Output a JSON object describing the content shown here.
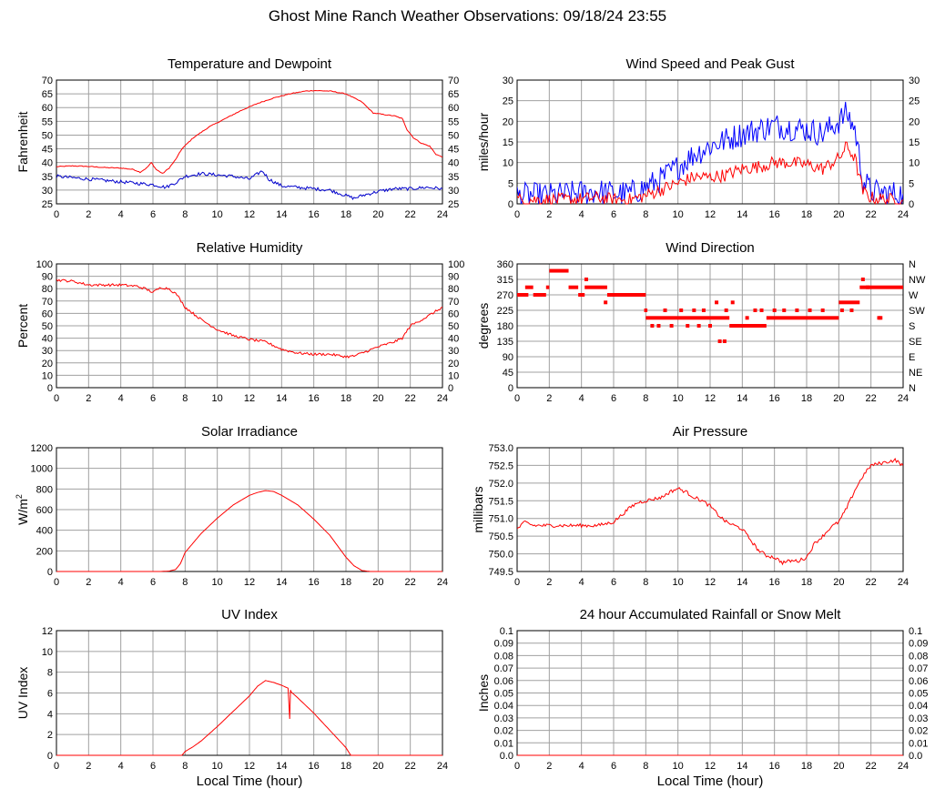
{
  "page": {
    "title": "Ghost Mine Ranch Weather Observations: 09/18/24 23:55"
  },
  "chart_data": [
    {
      "id": "temp",
      "type": "line",
      "title": "Temperature and Dewpoint",
      "xlabel": "",
      "ylabel": "Fahrenheit",
      "xlim": [
        0,
        24
      ],
      "ylim": [
        25,
        70
      ],
      "x_ticks": [
        0,
        2,
        4,
        6,
        8,
        10,
        12,
        14,
        16,
        18,
        20,
        22,
        24
      ],
      "y_ticks": [
        "25",
        "30",
        "35",
        "40",
        "45",
        "50",
        "55",
        "60",
        "65",
        "70"
      ],
      "right_ticks": [
        "25",
        "30",
        "35",
        "40",
        "45",
        "50",
        "55",
        "60",
        "65",
        "70"
      ],
      "grid": true,
      "series": [
        {
          "color": "#ff0000",
          "noise": 0.15,
          "x": [
            0,
            1,
            2,
            3,
            4,
            4.8,
            5.2,
            5.6,
            5.9,
            6.2,
            6.6,
            7,
            7.4,
            7.8,
            8.5,
            9.5,
            10.5,
            11.5,
            12.5,
            13.5,
            14.5,
            15.5,
            16,
            17,
            18,
            19,
            19.7,
            20.3,
            21,
            21.5,
            21.8,
            22.2,
            22.7,
            23.2,
            23.6,
            24
          ],
          "y": [
            38.5,
            38.8,
            38.6,
            38.2,
            38,
            37.5,
            36.5,
            38,
            40,
            37.5,
            36,
            38,
            41,
            45,
            49,
            53,
            56,
            59,
            61.5,
            63.5,
            65,
            66,
            66.2,
            66,
            65,
            62,
            58,
            57.5,
            57,
            56,
            52,
            49,
            47,
            46,
            43,
            42
          ]
        },
        {
          "color": "#0000cc",
          "noise": 0.6,
          "x": [
            0,
            1,
            2,
            3,
            4,
            5,
            6,
            6.8,
            7.5,
            8,
            9,
            10,
            11,
            12,
            12.8,
            13.2,
            14,
            15,
            16,
            17,
            18,
            18.5,
            19,
            20,
            21,
            22,
            23,
            24
          ],
          "y": [
            35,
            34.5,
            34,
            33.5,
            33,
            32.5,
            32,
            31,
            33,
            35,
            36,
            35.5,
            35,
            34,
            37,
            34,
            31.5,
            31,
            30.5,
            30,
            28,
            27,
            28,
            29.5,
            30.5,
            30.5,
            31,
            30.5
          ]
        }
      ]
    },
    {
      "id": "wind",
      "type": "line",
      "title": "Wind Speed and Peak Gust",
      "xlabel": "",
      "ylabel": "miles/hour",
      "xlim": [
        0,
        24
      ],
      "ylim": [
        0,
        30
      ],
      "x_ticks": [
        0,
        2,
        4,
        6,
        8,
        10,
        12,
        14,
        16,
        18,
        20,
        22,
        24
      ],
      "y_ticks": [
        "0",
        "5",
        "10",
        "15",
        "20",
        "25",
        "30"
      ],
      "right_ticks": [
        "0",
        "5",
        "10",
        "15",
        "20",
        "25",
        "30"
      ],
      "grid": true,
      "series": [
        {
          "color": "#0000ff",
          "noise": 3.2,
          "x": [
            0,
            2,
            3.5,
            5,
            6,
            7,
            8,
            9,
            10,
            11,
            12,
            13,
            14,
            15,
            16,
            17,
            18,
            19,
            20,
            20.5,
            21,
            21.5,
            22,
            23,
            24
          ],
          "y": [
            2,
            2,
            2.5,
            3,
            2.5,
            2.5,
            4,
            6,
            9,
            12,
            14,
            15.5,
            17,
            18,
            19,
            18.5,
            18,
            17,
            20,
            22,
            18,
            6,
            3,
            2.5,
            2.5
          ]
        },
        {
          "color": "#ff0000",
          "noise": 1.6,
          "x": [
            0,
            2,
            3.5,
            5,
            6,
            7,
            8,
            9,
            10,
            11,
            12,
            13,
            14,
            15,
            16,
            17,
            18,
            19,
            20,
            20.5,
            21,
            21.5,
            22,
            23,
            24
          ],
          "y": [
            1,
            1,
            1,
            1.5,
            1,
            1,
            2,
            3.5,
            5,
            6.5,
            6.5,
            7,
            8.5,
            9,
            10,
            10,
            9.5,
            8.5,
            11,
            14,
            11,
            3,
            1.5,
            1,
            1
          ]
        }
      ]
    },
    {
      "id": "rh",
      "type": "line",
      "title": "Relative Humidity",
      "xlabel": "",
      "ylabel": "Percent",
      "xlim": [
        0,
        24
      ],
      "ylim": [
        0,
        100
      ],
      "x_ticks": [
        0,
        2,
        4,
        6,
        8,
        10,
        12,
        14,
        16,
        18,
        20,
        22,
        24
      ],
      "y_ticks": [
        "0",
        "10",
        "20",
        "30",
        "40",
        "50",
        "60",
        "70",
        "80",
        "90",
        "100"
      ],
      "right_ticks": [
        "0",
        "10",
        "20",
        "30",
        "40",
        "50",
        "60",
        "70",
        "80",
        "90",
        "100"
      ],
      "grid": true,
      "series": [
        {
          "color": "#ff0000",
          "noise": 1.0,
          "x": [
            0,
            1,
            2,
            3,
            4,
            5,
            5.5,
            6,
            6.5,
            7,
            7.5,
            8,
            9,
            10,
            11,
            12,
            13,
            14,
            15,
            16,
            17,
            18,
            18.5,
            19,
            20,
            21,
            21.5,
            22,
            23,
            24
          ],
          "y": [
            87,
            86,
            83,
            83,
            83,
            82,
            80,
            77,
            81,
            80,
            75,
            65,
            55,
            47,
            42,
            39,
            37,
            31,
            28,
            27,
            27,
            25,
            25.5,
            28,
            33,
            37,
            40,
            50,
            57,
            65
          ]
        }
      ]
    },
    {
      "id": "wdir",
      "type": "scatter",
      "title": "Wind Direction",
      "xlabel": "",
      "ylabel": "degrees",
      "xlim": [
        0,
        24
      ],
      "ylim": [
        0,
        360
      ],
      "x_ticks": [
        0,
        2,
        4,
        6,
        8,
        10,
        12,
        14,
        16,
        18,
        20,
        22,
        24
      ],
      "y_ticks": [
        "0",
        "45",
        "90",
        "135",
        "180",
        "225",
        "270",
        "315",
        "360"
      ],
      "right_ticks": [
        "N",
        "NE",
        "E",
        "SE",
        "S",
        "SW",
        "W",
        "NW",
        "N"
      ],
      "grid": true,
      "series": [
        {
          "color": "#ff0000",
          "segments": [
            {
              "x0": 0,
              "x1": 0.7,
              "y": 270
            },
            {
              "x0": 0.5,
              "x1": 1.0,
              "y": 292
            },
            {
              "x0": 1.0,
              "x1": 1.8,
              "y": 270
            },
            {
              "x0": 1.8,
              "x1": 2.0,
              "y": 292
            },
            {
              "x0": 2.0,
              "x1": 3.2,
              "y": 340
            },
            {
              "x0": 3.2,
              "x1": 3.8,
              "y": 292
            },
            {
              "x0": 3.8,
              "x1": 4.2,
              "y": 270
            },
            {
              "x0": 4.2,
              "x1": 5.6,
              "y": 292
            },
            {
              "x0": 5.6,
              "x1": 8.0,
              "y": 270
            },
            {
              "x0": 7.9,
              "x1": 8.1,
              "y": 225
            },
            {
              "x0": 8.0,
              "x1": 12.0,
              "y": 203
            },
            {
              "x0": 12.0,
              "x1": 13.2,
              "y": 203
            },
            {
              "x0": 13.2,
              "x1": 15.5,
              "y": 180
            },
            {
              "x0": 15.5,
              "x1": 20.0,
              "y": 203
            },
            {
              "x0": 20.0,
              "x1": 21.3,
              "y": 248
            },
            {
              "x0": 21.3,
              "x1": 24,
              "y": 292
            }
          ],
          "points": [
            {
              "x": 5.5,
              "y": 248
            },
            {
              "x": 4.3,
              "y": 315
            },
            {
              "x": 8.4,
              "y": 180
            },
            {
              "x": 8.8,
              "y": 180
            },
            {
              "x": 9.2,
              "y": 225
            },
            {
              "x": 9.6,
              "y": 180
            },
            {
              "x": 10.2,
              "y": 225
            },
            {
              "x": 10.6,
              "y": 180
            },
            {
              "x": 11.0,
              "y": 225
            },
            {
              "x": 11.3,
              "y": 180
            },
            {
              "x": 11.6,
              "y": 225
            },
            {
              "x": 12.0,
              "y": 180
            },
            {
              "x": 12.4,
              "y": 248
            },
            {
              "x": 12.6,
              "y": 135
            },
            {
              "x": 12.9,
              "y": 135
            },
            {
              "x": 13.0,
              "y": 225
            },
            {
              "x": 13.4,
              "y": 248
            },
            {
              "x": 14.3,
              "y": 203
            },
            {
              "x": 14.8,
              "y": 225
            },
            {
              "x": 15.2,
              "y": 225
            },
            {
              "x": 16.0,
              "y": 225
            },
            {
              "x": 16.6,
              "y": 225
            },
            {
              "x": 17.4,
              "y": 225
            },
            {
              "x": 18.2,
              "y": 225
            },
            {
              "x": 19.0,
              "y": 225
            },
            {
              "x": 20.2,
              "y": 225
            },
            {
              "x": 20.8,
              "y": 225
            },
            {
              "x": 21.5,
              "y": 315
            },
            {
              "x": 22.5,
              "y": 203
            },
            {
              "x": 22.6,
              "y": 203
            },
            {
              "x": 21.8,
              "y": 292
            }
          ]
        }
      ]
    },
    {
      "id": "solar",
      "type": "line",
      "title": "Solar Irradiance",
      "xlabel": "",
      "ylabel": "W/m",
      "ylabel_sup": "2",
      "xlim": [
        0,
        24
      ],
      "ylim": [
        0,
        1300
      ],
      "x_ticks": [
        0,
        2,
        4,
        6,
        8,
        10,
        12,
        14,
        16,
        18,
        20,
        22,
        24
      ],
      "y_ticks": [
        "0",
        "200",
        "400",
        "600",
        "800",
        "1000",
        "1200"
      ],
      "right_ticks": [],
      "grid": true,
      "series": [
        {
          "color": "#ff0000",
          "noise": 0,
          "x": [
            0,
            6.5,
            7.0,
            7.4,
            7.7,
            8.0,
            8.5,
            9,
            10,
            11,
            12,
            12.5,
            13,
            13.5,
            14,
            15,
            16,
            17,
            18,
            18.5,
            19,
            19.5,
            24
          ],
          "y": [
            0,
            0,
            5,
            20,
            80,
            200,
            300,
            400,
            560,
            700,
            800,
            830,
            850,
            840,
            800,
            700,
            550,
            380,
            150,
            60,
            10,
            0,
            0
          ]
        }
      ]
    },
    {
      "id": "pressure",
      "type": "line",
      "title": "Air Pressure",
      "xlabel": "",
      "ylabel": "millibars",
      "xlim": [
        0,
        24
      ],
      "ylim": [
        749.5,
        753.0
      ],
      "x_ticks": [
        0,
        2,
        4,
        6,
        8,
        10,
        12,
        14,
        16,
        18,
        20,
        22,
        24
      ],
      "y_ticks": [
        "749.5",
        "750.0",
        "750.5",
        "751.0",
        "751.5",
        "752.0",
        "752.5",
        "753.0"
      ],
      "right_ticks": [],
      "grid": true,
      "series": [
        {
          "color": "#ff0000",
          "noise": 0.05,
          "x": [
            0,
            0.5,
            1,
            2,
            3,
            4,
            5,
            6,
            6.5,
            7,
            7.5,
            8,
            9,
            9.5,
            10,
            10.5,
            11,
            11.5,
            12,
            12.5,
            13,
            13.5,
            14,
            14.5,
            15,
            15.5,
            16,
            16.5,
            17,
            17.5,
            18,
            18.5,
            19,
            19.5,
            20,
            20.5,
            21,
            21.5,
            22,
            22.5,
            23,
            23.5,
            24
          ],
          "y": [
            750.7,
            750.9,
            750.8,
            750.8,
            750.8,
            750.8,
            750.8,
            750.9,
            751.1,
            751.3,
            751.45,
            751.5,
            751.6,
            751.75,
            751.85,
            751.75,
            751.6,
            751.5,
            751.35,
            751.1,
            750.9,
            750.8,
            750.7,
            750.4,
            750.1,
            749.95,
            749.9,
            749.75,
            749.8,
            749.8,
            749.9,
            750.3,
            750.5,
            750.75,
            750.9,
            751.3,
            751.8,
            752.2,
            752.5,
            752.55,
            752.6,
            752.65,
            752.5
          ]
        }
      ]
    },
    {
      "id": "uv",
      "type": "line",
      "title": "UV Index",
      "xlabel": "Local Time (hour)",
      "ylabel": "UV Index",
      "xlim": [
        0,
        24
      ],
      "ylim": [
        0,
        13
      ],
      "x_ticks": [
        0,
        2,
        4,
        6,
        8,
        10,
        12,
        14,
        16,
        18,
        20,
        22,
        24
      ],
      "y_ticks": [
        "0",
        "2",
        "4",
        "6",
        "8",
        "10",
        "12"
      ],
      "right_ticks": [],
      "grid": true,
      "series": [
        {
          "color": "#ff0000",
          "noise": 0,
          "x": [
            0,
            7.8,
            8.0,
            8.5,
            9,
            10,
            11,
            12,
            12.5,
            13,
            13.5,
            14,
            14.4,
            14.5,
            14.55,
            14.6,
            15,
            16,
            17,
            18,
            18.3,
            24
          ],
          "y": [
            0,
            0,
            0.4,
            0.9,
            1.5,
            3,
            4.6,
            6.2,
            7.2,
            7.8,
            7.6,
            7.3,
            7.0,
            3.8,
            6.8,
            6.6,
            6.0,
            4.4,
            2.6,
            0.8,
            0,
            0
          ]
        }
      ]
    },
    {
      "id": "rain",
      "type": "line",
      "title": "24 hour Accumulated Rainfall or Snow Melt",
      "xlabel": "Local Time (hour)",
      "ylabel": "Inches",
      "xlim": [
        0,
        24
      ],
      "ylim": [
        0,
        0.1
      ],
      "x_ticks": [
        0,
        2,
        4,
        6,
        8,
        10,
        12,
        14,
        16,
        18,
        20,
        22,
        24
      ],
      "y_ticks": [
        "0.0",
        "0.01",
        "0.02",
        "0.03",
        "0.04",
        "0.05",
        "0.06",
        "0.07",
        "0.08",
        "0.09",
        "0.1"
      ],
      "right_ticks": [
        "0.0",
        "0.01",
        "0.02",
        "0.03",
        "0.04",
        "0.05",
        "0.06",
        "0.07",
        "0.08",
        "0.09",
        "0.1"
      ],
      "grid": true,
      "series": [
        {
          "color": "#ff0000",
          "noise": 0,
          "x": [
            0,
            24
          ],
          "y": [
            0,
            0
          ]
        }
      ]
    }
  ]
}
